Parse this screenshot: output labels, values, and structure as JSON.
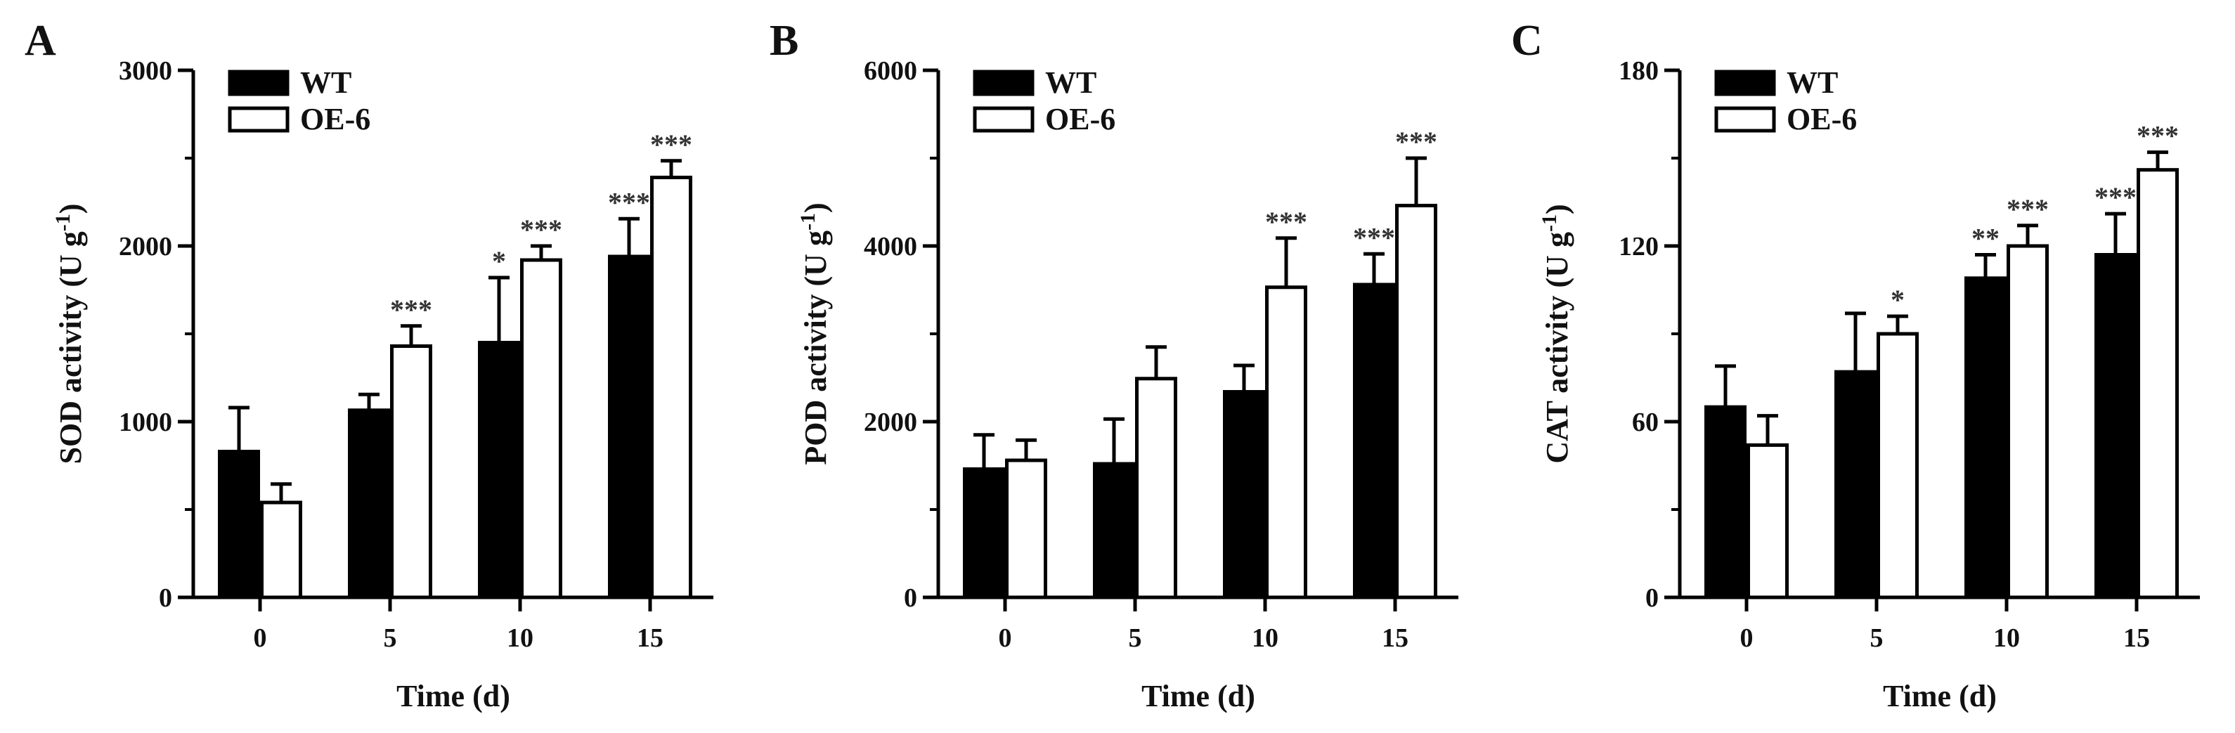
{
  "chart_data": [
    {
      "type": "bar",
      "panel_label": "A",
      "categories": [
        "0",
        "5",
        "10",
        "15"
      ],
      "xlabel": "Time (d)",
      "ylabel_main": "SOD activity (U g",
      "ylabel_sup": "-1",
      "ylabel_close": ")",
      "ylim": [
        0,
        3000
      ],
      "yticks": [
        "0",
        "1000",
        "2000",
        "3000"
      ],
      "series": [
        {
          "name": "WT",
          "values": [
            830,
            1065,
            1450,
            1940
          ],
          "errors": [
            250,
            90,
            370,
            215
          ],
          "significance": [
            "",
            "",
            "*",
            "***"
          ]
        },
        {
          "name": "OE-6",
          "values": [
            540,
            1430,
            1920,
            2390
          ],
          "errors": [
            105,
            115,
            80,
            95
          ],
          "significance": [
            "",
            "***",
            "***",
            "***"
          ]
        }
      ],
      "legend_position": "top-left"
    },
    {
      "type": "bar",
      "panel_label": "B",
      "categories": [
        "0",
        "5",
        "10",
        "15"
      ],
      "xlabel": "Time (d)",
      "ylabel_main": "POD activity (U g",
      "ylabel_sup": "-1",
      "ylabel_close": ")",
      "ylim": [
        0,
        6000
      ],
      "yticks": [
        "0",
        "2000",
        "4000",
        "6000"
      ],
      "series": [
        {
          "name": "WT",
          "values": [
            1460,
            1520,
            2340,
            3560
          ],
          "errors": [
            390,
            510,
            300,
            350
          ],
          "significance": [
            "",
            "",
            "",
            "***"
          ]
        },
        {
          "name": "OE-6",
          "values": [
            1560,
            2490,
            3530,
            4460
          ],
          "errors": [
            230,
            360,
            560,
            540
          ],
          "significance": [
            "",
            "",
            "***",
            "***"
          ]
        }
      ],
      "legend_position": "top-left"
    },
    {
      "type": "bar",
      "panel_label": "C",
      "categories": [
        "0",
        "5",
        "10",
        "15"
      ],
      "xlabel": "Time (d)",
      "ylabel_main": "CAT activity (U g",
      "ylabel_sup": "-1",
      "ylabel_close": ")",
      "ylim": [
        0,
        180
      ],
      "yticks": [
        "0",
        "60",
        "120",
        "180"
      ],
      "series": [
        {
          "name": "WT",
          "values": [
            65,
            77,
            109,
            117
          ],
          "errors": [
            14,
            20,
            8,
            14
          ],
          "significance": [
            "",
            "",
            "**",
            "***"
          ]
        },
        {
          "name": "OE-6",
          "values": [
            52,
            90,
            120,
            146
          ],
          "errors": [
            10,
            6,
            7,
            6
          ],
          "significance": [
            "",
            "*",
            "***",
            "***"
          ]
        }
      ],
      "legend_position": "top-left"
    }
  ],
  "colors": {
    "wt_fill": "#000000",
    "oe_fill": "#ffffff",
    "stroke": "#000000",
    "text": "#111111"
  }
}
